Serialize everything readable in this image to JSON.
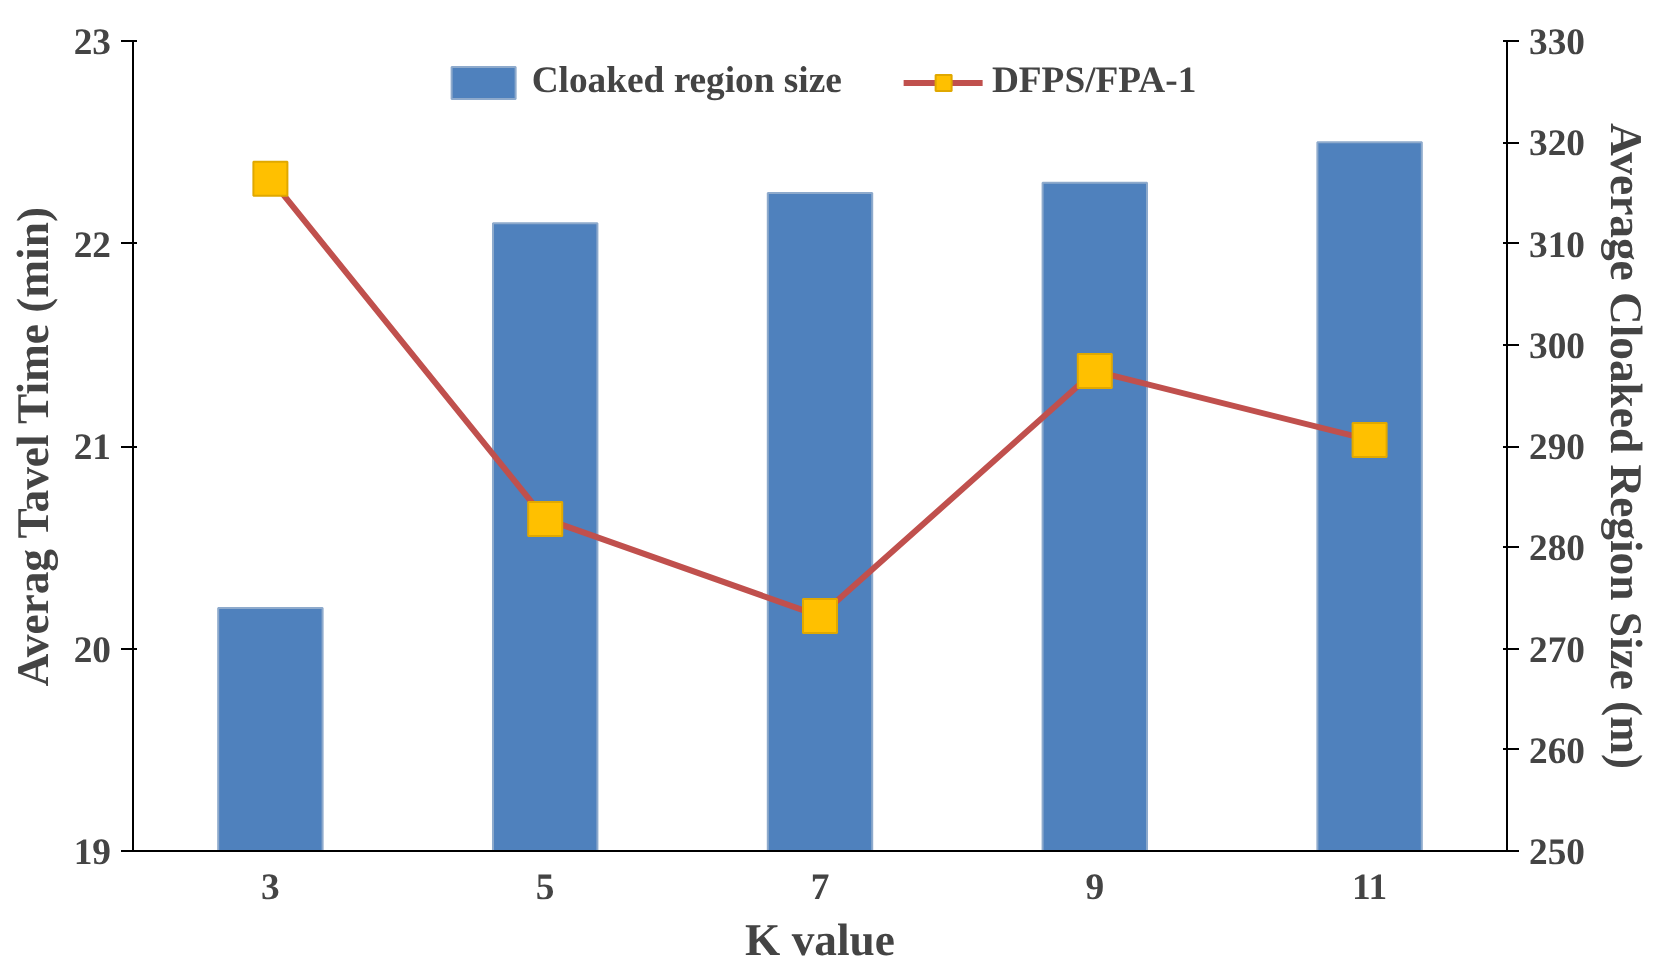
{
  "chart_data": {
    "type": "bar",
    "xlabel": "K value",
    "ylabel": "Averag Tavel Time (min)",
    "y2label": "Average Cloaked Region Size (m)",
    "categories": [
      "3",
      "5",
      "7",
      "9",
      "11"
    ],
    "series": [
      {
        "name": "Cloaked region size",
        "axis": "y2",
        "color": "#4f81bd",
        "values": [
          274,
          312,
          315,
          316,
          320
        ]
      },
      {
        "name": "DFPS/FPA-1",
        "type": "line",
        "axis": "y",
        "color": "#c0504d",
        "marker": "square",
        "values": [
          22.32,
          20.64,
          20.16,
          21.37,
          21.03
        ]
      }
    ],
    "ylim": [
      19,
      23
    ],
    "yticks": [
      19,
      20,
      21,
      22,
      23
    ],
    "y2lim": [
      250,
      330
    ],
    "y2ticks": [
      250,
      260,
      270,
      280,
      290,
      300,
      310,
      320,
      330
    ],
    "legend": "top",
    "grid": false
  }
}
